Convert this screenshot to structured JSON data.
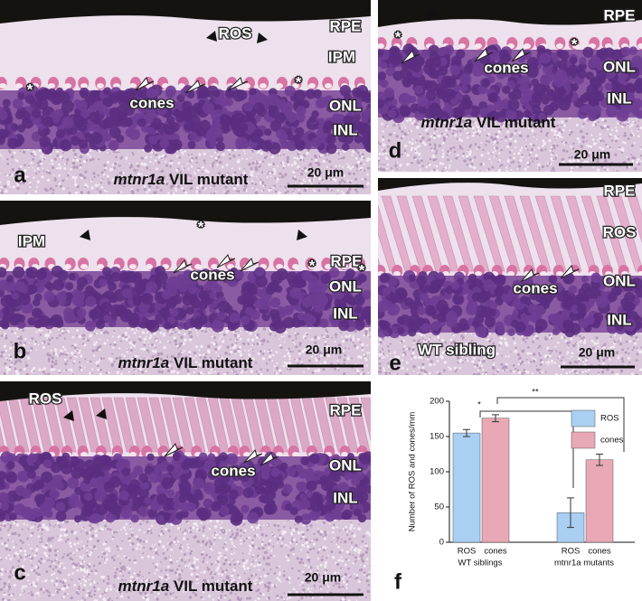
{
  "panels": [
    {
      "letter": "a",
      "labels": [
        "ROS",
        "RPE",
        "IPM",
        "cones",
        "ONL",
        "INL",
        "*",
        "*"
      ],
      "caption": [
        "mtnr1a",
        "VIL mutant"
      ],
      "scale": "20 μm"
    },
    {
      "letter": "d",
      "labels": [
        "RPE",
        "cones",
        "ONL",
        "INL",
        "*",
        "*"
      ],
      "caption": [
        "mtnr1a",
        "VIL mutant"
      ],
      "scale": "20 μm"
    },
    {
      "letter": "b",
      "labels": [
        "IPM",
        "RPE",
        "cones",
        "ONL",
        "INL",
        "*",
        "*",
        "*"
      ],
      "caption": [
        "mtnr1a",
        "VIL mutant"
      ],
      "scale": "20 μm"
    },
    {
      "letter": "e",
      "labels": [
        "RPE",
        "ROS",
        "cones",
        "ONL",
        "INL"
      ],
      "caption": [
        "WT sibling"
      ],
      "scale": "20 μm"
    },
    {
      "letter": "c",
      "labels": [
        "ROS",
        "RPE",
        "cones",
        "ONL",
        "INL"
      ],
      "caption": [
        "mtnr1a",
        "VIL mutant"
      ],
      "scale": "20 μm"
    }
  ],
  "chart_data": {
    "type": "bar",
    "panel_label": "f",
    "ylabel": "Number of ROS and cones/mm",
    "categories": [
      "WT siblings",
      "mtnr1a mutants"
    ],
    "series": [
      {
        "name": "ROS",
        "color": "#a9cff2",
        "values": [
          155,
          42
        ],
        "errors": [
          5,
          21
        ]
      },
      {
        "name": "cones",
        "color": "#e9a8b6",
        "values": [
          176,
          117
        ],
        "errors": [
          5,
          8
        ]
      }
    ],
    "ylim": [
      0,
      200
    ],
    "yticks": [
      0,
      50,
      100,
      150,
      200
    ],
    "legend": "upper right",
    "significance": [
      "*",
      "**"
    ]
  }
}
